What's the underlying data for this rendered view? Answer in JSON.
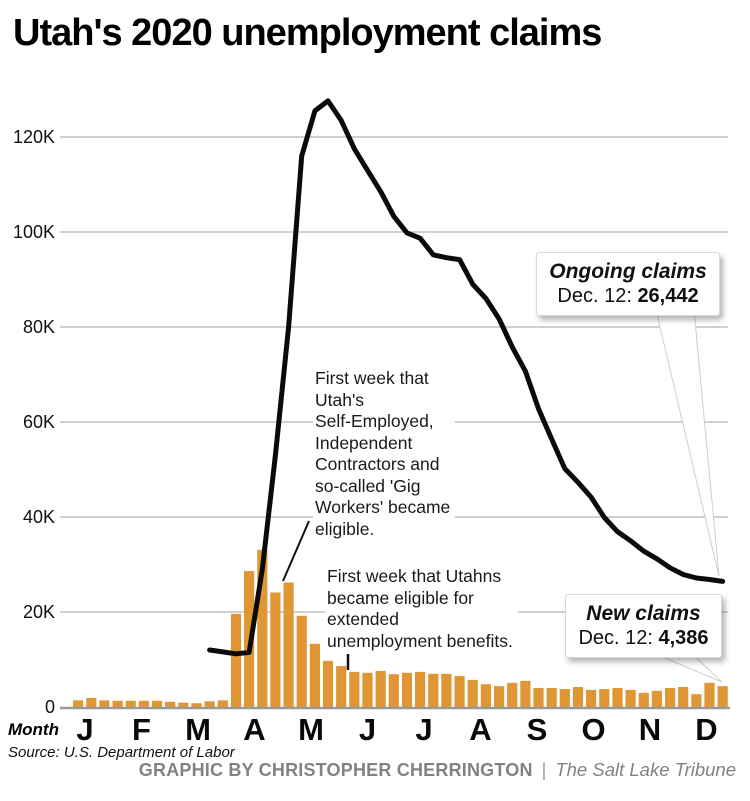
{
  "header": {
    "title": "Utah's 2020 unemployment claims"
  },
  "chart_data": {
    "type": "combo",
    "title": "Utah's 2020 unemployment claims",
    "grid": true,
    "x_axis": {
      "label": "Month",
      "month_labels": [
        "J",
        "F",
        "M",
        "A",
        "M",
        "J",
        "J",
        "A",
        "S",
        "O",
        "N",
        "D"
      ]
    },
    "y_axis": {
      "ticks": [
        0,
        20000,
        40000,
        60000,
        80000,
        100000,
        120000
      ],
      "tick_labels": [
        "0",
        "20K",
        "40K",
        "60K",
        "80K",
        "100K",
        "120K"
      ],
      "range": [
        0,
        128000
      ]
    },
    "series": [
      {
        "name": "New claims",
        "type": "bar",
        "unit": "weekly claims",
        "values": [
          1400,
          1900,
          1400,
          1300,
          1300,
          1300,
          1300,
          1100,
          900,
          800,
          1200,
          1400,
          19600,
          28600,
          33100,
          24100,
          26200,
          19200,
          13300,
          9700,
          8600,
          7400,
          7200,
          7600,
          6900,
          7200,
          7400,
          7000,
          7000,
          6500,
          5700,
          4800,
          4400,
          5100,
          5500,
          4000,
          4000,
          3800,
          4200,
          3600,
          3800,
          4000,
          3600,
          3000,
          3400,
          4000,
          4200,
          2700,
          5100,
          4386
        ]
      },
      {
        "name": "Ongoing claims",
        "type": "line",
        "unit": "weekly claims",
        "values": [
          null,
          null,
          null,
          null,
          null,
          null,
          null,
          null,
          null,
          null,
          12000,
          11600,
          11200,
          11500,
          29000,
          53000,
          80000,
          116000,
          125500,
          127600,
          123500,
          117500,
          113000,
          108500,
          103300,
          99800,
          98700,
          95200,
          94600,
          94200,
          89000,
          86000,
          81700,
          75800,
          70700,
          62800,
          56400,
          50200,
          47300,
          44200,
          39900,
          36900,
          35000,
          32800,
          31200,
          29300,
          27900,
          27150,
          26850,
          26442
        ]
      }
    ]
  },
  "annotations": {
    "gig_workers": {
      "text": "First week that\nUtah's\nSelf-Employed,\nIndependent\nContractors and\nso-called 'Gig\nWorkers' became\neligible."
    },
    "extended_benefits": {
      "text": "First week that Utahns\nbecame eligible for\nextended\nunemployment benefits."
    }
  },
  "callouts": {
    "ongoing": {
      "label": "Ongoing claims",
      "date": "Dec. 12:",
      "value": "26,442"
    },
    "new": {
      "label": "New claims",
      "date": "Dec. 12:",
      "value": "4,386"
    }
  },
  "axis_labels": {
    "month_word": "Month"
  },
  "footer": {
    "source": "Source: U.S. Department of Labor",
    "credit": "GRAPHIC BY CHRISTOPHER CHERRINGTON",
    "divider": "|",
    "brand": "The Salt Lake Tribune"
  },
  "colors": {
    "bar": "#DE9734",
    "line": "#0b0b0b",
    "grid": "#b3b3b3",
    "baseline": "#999999",
    "annotation_pointer": "#111111",
    "footer_gray": "#828282"
  }
}
